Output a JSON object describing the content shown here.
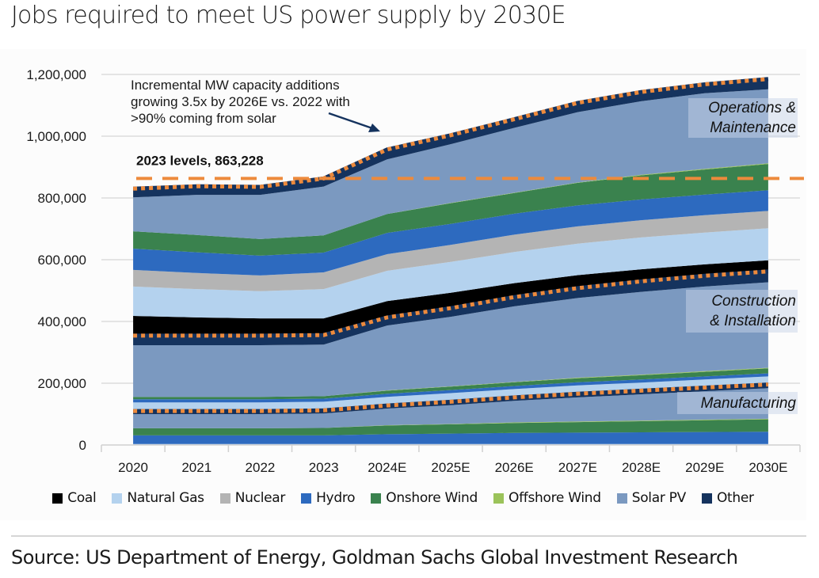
{
  "title": "Jobs required to meet US power supply by 2030E",
  "source": "Source: US Department of Energy, Goldman Sachs Global Investment Research",
  "chart_data": {
    "type": "area",
    "stacked": true,
    "title": "Jobs required to meet US power supply by 2030E",
    "xlabel": "",
    "ylabel": "",
    "ylim": [
      0,
      1200000
    ],
    "yticks": [
      0,
      200000,
      400000,
      600000,
      800000,
      1000000,
      1200000
    ],
    "ytick_labels": [
      "0",
      "200,000",
      "400,000",
      "600,000",
      "800,000",
      "1,000,000",
      "1,200,000"
    ],
    "grid": true,
    "categories": [
      "2020",
      "2021",
      "2022",
      "2023",
      "2024E",
      "2025E",
      "2026E",
      "2027E",
      "2028E",
      "2029E",
      "2030E"
    ],
    "legend_position": "bottom",
    "legend": [
      {
        "name": "Coal",
        "color": "#000000"
      },
      {
        "name": "Natural Gas",
        "color": "#b4d2ee"
      },
      {
        "name": "Nuclear",
        "color": "#b4b4b4"
      },
      {
        "name": "Hydro",
        "color": "#2d6abf"
      },
      {
        "name": "Onshore Wind",
        "color": "#3a824e"
      },
      {
        "name": "Offshore Wind",
        "color": "#9bc35a"
      },
      {
        "name": "Solar PV",
        "color": "#7b99c0"
      },
      {
        "name": "Other",
        "color": "#15335e"
      }
    ],
    "phases": [
      {
        "name": "Manufacturing",
        "series": [
          {
            "name": "Natural Gas",
            "values": [
              3000,
              3000,
              3000,
              3000,
              3000,
              3000,
              3000,
              3000,
              3000,
              3000,
              3000
            ]
          },
          {
            "name": "Hydro",
            "values": [
              28000,
              28000,
              28000,
              28000,
              32000,
              34000,
              36000,
              37000,
              38000,
              39000,
              40000
            ]
          },
          {
            "name": "Onshore Wind",
            "values": [
              23000,
              23000,
              23000,
              24000,
              28000,
              30000,
              32000,
              34000,
              36000,
              38000,
              40000
            ]
          },
          {
            "name": "Offshore Wind",
            "values": [
              0,
              0,
              0,
              0,
              1000,
              1000,
              2000,
              2000,
              2000,
              2000,
              2000
            ]
          },
          {
            "name": "Solar PV",
            "values": [
              46000,
              46000,
              46000,
              47000,
              54000,
              61000,
              70000,
              78000,
              85000,
              92000,
              99000
            ]
          },
          {
            "name": "Other",
            "values": [
              10000,
              10000,
              10000,
              10000,
              10000,
              11000,
              11000,
              12000,
              12000,
              12000,
              12000
            ]
          }
        ],
        "total": [
          110000,
          110000,
          110000,
          112000,
          128000,
          140000,
          154000,
          166000,
          176000,
          186000,
          196000
        ]
      },
      {
        "name": "Construction & Installation",
        "series": [
          {
            "name": "Natural Gas",
            "values": [
              28000,
              28000,
              28000,
              28000,
              28000,
              28000,
              27000,
              27000,
              26000,
              26000,
              26000
            ]
          },
          {
            "name": "Hydro",
            "values": [
              10000,
              10000,
              10000,
              10000,
              10000,
              10000,
              10000,
              10000,
              10000,
              10000,
              10000
            ]
          },
          {
            "name": "Onshore Wind",
            "values": [
              8000,
              8000,
              8000,
              8000,
              10000,
              11000,
              12000,
              13000,
              14000,
              15000,
              16000
            ]
          },
          {
            "name": "Offshore Wind",
            "values": [
              0,
              0,
              0,
              0,
              1000,
              1000,
              1000,
              2000,
              2000,
              2000,
              2000
            ]
          },
          {
            "name": "Solar PV",
            "values": [
              167000,
              167000,
              167000,
              167000,
              210000,
              225000,
              245000,
              258000,
              268000,
              274000,
              277000
            ]
          },
          {
            "name": "Other",
            "values": [
              31000,
              31000,
              31000,
              31000,
              26000,
              28000,
              30000,
              32000,
              34000,
              35000,
              35000
            ]
          }
        ],
        "total": [
          354000,
          354000,
          354000,
          356000,
          413000,
          443000,
          479000,
          508000,
          530000,
          548000,
          562000
        ]
      },
      {
        "name": "Operations & Maintenance",
        "series": [
          {
            "name": "Coal",
            "values": [
              64000,
              59000,
              56000,
              54000,
              53000,
              50000,
              45000,
              42000,
              39000,
              37000,
              36000
            ]
          },
          {
            "name": "Natural Gas",
            "values": [
              95000,
              92000,
              88000,
              95000,
              98000,
              100000,
              101000,
              102000,
              103000,
              103000,
              104000
            ]
          },
          {
            "name": "Nuclear",
            "values": [
              54000,
              52000,
              51000,
              54000,
              54000,
              55000,
              56000,
              56000,
              56000,
              56000,
              56000
            ]
          },
          {
            "name": "Hydro",
            "values": [
              69000,
              67000,
              64000,
              64000,
              69000,
              68000,
              68000,
              68000,
              67000,
              67000,
              67000
            ]
          },
          {
            "name": "Onshore Wind",
            "values": [
              56000,
              56000,
              54000,
              56000,
              61000,
              67000,
              67000,
              73000,
              78000,
              81000,
              85000
            ]
          },
          {
            "name": "Offshore Wind",
            "values": [
              0,
              0,
              0,
              0,
              0,
              1000,
              1000,
              1000,
              2000,
              2000,
              2000
            ]
          },
          {
            "name": "Solar PV",
            "values": [
              110000,
              130000,
              143000,
              158000,
              177000,
              190000,
              210000,
              228000,
              238000,
              245000,
              240000
            ]
          },
          {
            "name": "Other",
            "values": [
              28000,
              28000,
              26000,
              26000,
              32000,
              29000,
              28000,
              30000,
              30000,
              31000,
              33000
            ]
          }
        ],
        "total": [
          830000,
          838000,
          836000,
          863000,
          957000,
          1003000,
          1055000,
          1108000,
          1143000,
          1168000,
          1185000
        ]
      }
    ],
    "reference_line": {
      "label": "2023 levels, 863,228",
      "value": 863228,
      "style": "dashed",
      "color": "#ed8a3c"
    },
    "phase_total_lines": {
      "style": "dotted",
      "color": "#ed8a3c"
    },
    "annotations": [
      {
        "text_lines": [
          "Incremental MW capacity additions",
          "growing 3.5x by 2026E vs. 2022 with",
          ">90% coming from solar"
        ],
        "arrow_to_category": "2024E"
      },
      {
        "text_lines": [
          "Operations &",
          "Maintenance"
        ],
        "phase": "Operations & Maintenance"
      },
      {
        "text_lines": [
          "Construction",
          "& Installation"
        ],
        "phase": "Construction & Installation"
      },
      {
        "text_lines": [
          "Manufacturing"
        ],
        "phase": "Manufacturing"
      }
    ]
  }
}
